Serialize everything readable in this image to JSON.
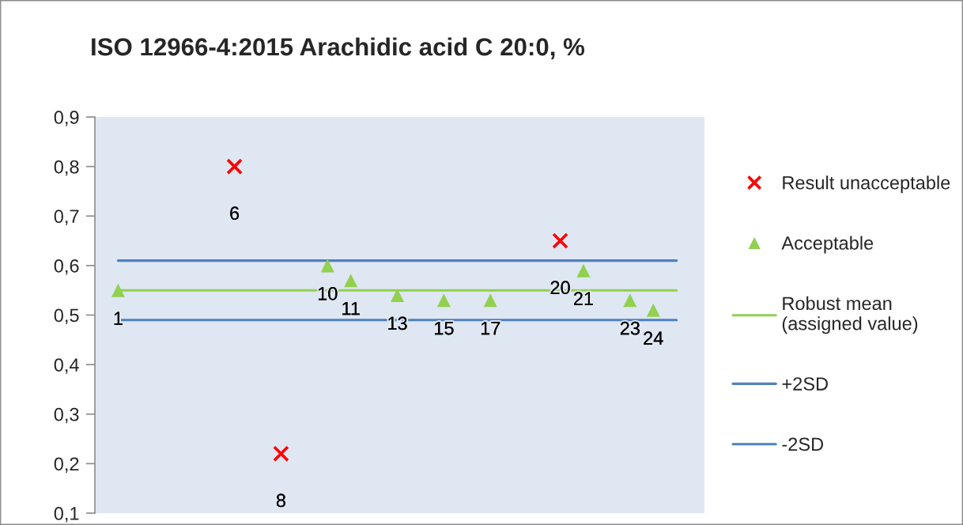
{
  "chart_data": {
    "type": "scatter",
    "title": "ISO 12966-4:2015 Arachidic acid C 20:0, %",
    "categories": [
      "1",
      null,
      null,
      null,
      null,
      "6",
      null,
      "8",
      null,
      "10",
      "11",
      null,
      "13",
      null,
      "15",
      null,
      "17",
      null,
      null,
      "20",
      "21",
      null,
      "23",
      "24",
      null
    ],
    "series": [
      {
        "name": "Result unacceptable",
        "marker": "cross",
        "color": "#ff0000",
        "values": [
          null,
          null,
          null,
          null,
          null,
          0.8,
          null,
          0.22,
          null,
          null,
          null,
          null,
          null,
          null,
          null,
          null,
          null,
          null,
          null,
          0.65,
          null,
          null,
          null,
          null,
          null
        ]
      },
      {
        "name": "Acceptable",
        "marker": "triangle",
        "color": "#92d050",
        "values": [
          0.55,
          null,
          null,
          null,
          null,
          null,
          null,
          null,
          null,
          0.6,
          0.57,
          null,
          0.54,
          null,
          0.53,
          null,
          0.53,
          null,
          null,
          null,
          0.59,
          null,
          0.53,
          0.51,
          null
        ]
      },
      {
        "name": "Robust mean (assigned value)",
        "type": "line",
        "color": "#92d050",
        "line_style": "solid",
        "values": [
          0.55,
          0.55,
          0.55,
          0.55,
          0.55,
          0.55,
          0.55,
          0.55,
          0.55,
          0.55,
          0.55,
          0.55,
          0.55,
          0.55,
          0.55,
          0.55,
          0.55,
          0.55,
          0.55,
          0.55,
          0.55,
          0.55,
          0.55,
          0.55,
          0.55
        ]
      },
      {
        "name": "+2SD",
        "type": "line",
        "color": "#4f81bd",
        "line_style": "solid",
        "values": [
          0.61,
          0.61,
          0.61,
          0.61,
          0.61,
          0.61,
          0.61,
          0.61,
          0.61,
          0.61,
          0.61,
          0.61,
          0.61,
          0.61,
          0.61,
          0.61,
          0.61,
          0.61,
          0.61,
          0.61,
          0.61,
          0.61,
          0.61,
          0.61,
          0.61
        ]
      },
      {
        "name": "-2SD",
        "type": "line",
        "color": "#4f81bd",
        "line_style": "solid",
        "values": [
          0.49,
          0.49,
          0.49,
          0.49,
          0.49,
          0.49,
          0.49,
          0.49,
          0.49,
          0.49,
          0.49,
          0.49,
          0.49,
          0.49,
          0.49,
          0.49,
          0.49,
          0.49,
          0.49,
          0.49,
          0.49,
          0.49,
          0.49,
          0.49,
          0.49
        ]
      }
    ],
    "ylim": [
      0.1,
      0.9
    ],
    "yticks": [
      {
        "value": 0.1,
        "label": "0,1"
      },
      {
        "value": 0.2,
        "label": "0,2"
      },
      {
        "value": 0.3,
        "label": "0,3"
      },
      {
        "value": 0.4,
        "label": "0,4"
      },
      {
        "value": 0.5,
        "label": "0,5"
      },
      {
        "value": 0.6,
        "label": "0,6"
      },
      {
        "value": 0.7,
        "label": "0,7"
      },
      {
        "value": 0.8,
        "label": "0,8"
      },
      {
        "value": 0.9,
        "label": "0,9"
      }
    ],
    "legend": "right"
  }
}
